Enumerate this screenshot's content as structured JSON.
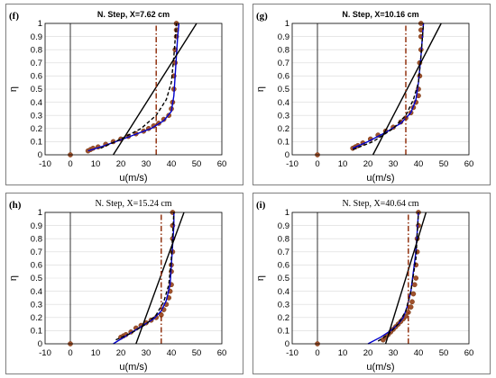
{
  "chart_data": [
    {
      "type": "line",
      "panel_tag": "(f)",
      "title": "N. Step, X=7.62 cm",
      "title_style": "bold",
      "xlabel": "u(m/s)",
      "ylabel": "η",
      "xlim": [
        -10,
        60
      ],
      "ylim": [
        0,
        1
      ],
      "xticks": [
        "-10",
        "0",
        "10",
        "20",
        "30",
        "40",
        "50",
        "60"
      ],
      "yticks": [
        "0",
        "0.1",
        "0.2",
        "0.3",
        "0.4",
        "0.5",
        "0.6",
        "0.7",
        "0.8",
        "0.9",
        "1"
      ],
      "grid": "horizontal",
      "series": [
        {
          "kind": "points",
          "color": "#a0522d",
          "x": [
            0,
            7,
            8,
            9,
            11,
            14,
            17,
            20,
            23,
            26,
            29,
            31,
            33,
            35,
            37,
            39,
            40,
            40.5,
            41,
            41,
            41.5,
            41.5,
            42,
            42,
            42
          ],
          "y": [
            0,
            0.03,
            0.04,
            0.05,
            0.06,
            0.08,
            0.1,
            0.12,
            0.14,
            0.16,
            0.18,
            0.2,
            0.22,
            0.24,
            0.27,
            0.3,
            0.35,
            0.4,
            0.5,
            0.6,
            0.7,
            0.8,
            0.9,
            0.95,
            1.0
          ]
        },
        {
          "kind": "line",
          "style": "solid",
          "color": "#0000cc",
          "x": [
            7,
            12,
            18,
            25,
            32,
            37,
            40,
            41,
            41.5,
            42,
            42.5,
            43
          ],
          "y": [
            0.03,
            0.06,
            0.1,
            0.15,
            0.2,
            0.26,
            0.33,
            0.45,
            0.6,
            0.75,
            0.9,
            1.0
          ]
        },
        {
          "kind": "line",
          "style": "dashed",
          "color": "#000000",
          "x": [
            12,
            20,
            28,
            34,
            38,
            40,
            41,
            42
          ],
          "y": [
            0.05,
            0.12,
            0.2,
            0.3,
            0.42,
            0.55,
            0.75,
            1.0
          ]
        },
        {
          "kind": "line",
          "style": "solid",
          "color": "#000000",
          "x": [
            17,
            50
          ],
          "y": [
            0,
            1
          ]
        },
        {
          "kind": "line",
          "style": "dashdot",
          "color": "#8b2500",
          "x": [
            34,
            34
          ],
          "y": [
            0,
            1
          ]
        }
      ]
    },
    {
      "type": "line",
      "panel_tag": "(g)",
      "title": "N. Step, X=10.16 cm",
      "title_style": "bold",
      "xlabel": "u(m/s)",
      "ylabel": "η",
      "xlim": [
        -10,
        60
      ],
      "ylim": [
        0,
        1
      ],
      "xticks": [
        "-10",
        "0",
        "10",
        "20",
        "30",
        "40",
        "50",
        "60"
      ],
      "yticks": [
        "0",
        "0.1",
        "0.2",
        "0.3",
        "0.4",
        "0.5",
        "0.6",
        "0.7",
        "0.8",
        "0.9",
        "1"
      ],
      "grid": "horizontal",
      "series": [
        {
          "kind": "points",
          "color": "#a0522d",
          "x": [
            0,
            14,
            15,
            16,
            18,
            21,
            24,
            27,
            30,
            33,
            35,
            37,
            38,
            39,
            40,
            40,
            40.5,
            40.5,
            41,
            41,
            41,
            41
          ],
          "y": [
            0,
            0.05,
            0.06,
            0.07,
            0.09,
            0.12,
            0.15,
            0.18,
            0.21,
            0.25,
            0.28,
            0.32,
            0.36,
            0.4,
            0.45,
            0.5,
            0.6,
            0.7,
            0.8,
            0.9,
            0.95,
            1.0
          ]
        },
        {
          "kind": "line",
          "style": "solid",
          "color": "#0000cc",
          "x": [
            14,
            20,
            27,
            33,
            37,
            39,
            40,
            40.5,
            41,
            41.5,
            42
          ],
          "y": [
            0.05,
            0.1,
            0.17,
            0.24,
            0.32,
            0.42,
            0.55,
            0.65,
            0.75,
            0.88,
            1.0
          ]
        },
        {
          "kind": "line",
          "style": "dashed",
          "color": "#000000",
          "x": [
            14,
            22,
            30,
            35,
            38,
            40,
            41,
            42
          ],
          "y": [
            0.04,
            0.1,
            0.2,
            0.3,
            0.42,
            0.55,
            0.75,
            1.0
          ]
        },
        {
          "kind": "line",
          "style": "solid",
          "color": "#000000",
          "x": [
            22,
            49
          ],
          "y": [
            0,
            1
          ]
        },
        {
          "kind": "line",
          "style": "dashdot",
          "color": "#8b2500",
          "x": [
            35,
            35
          ],
          "y": [
            0,
            1
          ]
        }
      ]
    },
    {
      "type": "line",
      "panel_tag": "(h)",
      "title": "N. Step, X=15.24 cm",
      "title_style": "normal",
      "xlabel": "u(m/s)",
      "ylabel": "η",
      "xlim": [
        -10,
        60
      ],
      "ylim": [
        0,
        1
      ],
      "xticks": [
        "-10",
        "0",
        "10",
        "20",
        "30",
        "40",
        "50",
        "60"
      ],
      "yticks": [
        "0",
        "0.1",
        "0.2",
        "0.3",
        "0.4",
        "0.5",
        "0.6",
        "0.7",
        "0.8",
        "0.9",
        "1"
      ],
      "grid": "horizontal",
      "series": [
        {
          "kind": "points",
          "color": "#a0522d",
          "x": [
            0,
            20,
            21,
            22,
            24,
            26,
            28,
            30,
            32,
            34,
            36,
            37,
            38,
            39,
            39.5,
            40,
            40,
            40,
            40.5,
            40.5,
            40.5,
            40.5
          ],
          "y": [
            0,
            0.05,
            0.06,
            0.07,
            0.09,
            0.12,
            0.14,
            0.16,
            0.18,
            0.2,
            0.22,
            0.26,
            0.3,
            0.35,
            0.4,
            0.45,
            0.55,
            0.6,
            0.7,
            0.8,
            0.9,
            1.0
          ]
        },
        {
          "kind": "line",
          "style": "solid",
          "color": "#0000cc",
          "x": [
            17,
            22,
            28,
            33,
            36,
            38,
            39.5,
            40,
            40.5,
            41,
            41
          ],
          "y": [
            0.0,
            0.06,
            0.13,
            0.19,
            0.25,
            0.33,
            0.45,
            0.6,
            0.75,
            0.9,
            1.0
          ]
        },
        {
          "kind": "line",
          "style": "dashed",
          "color": "#000000",
          "x": [
            18,
            24,
            30,
            34,
            37,
            39,
            40,
            41
          ],
          "y": [
            0.03,
            0.08,
            0.15,
            0.22,
            0.32,
            0.45,
            0.65,
            1.0
          ]
        },
        {
          "kind": "line",
          "style": "solid",
          "color": "#000000",
          "x": [
            26,
            45
          ],
          "y": [
            0,
            1
          ]
        },
        {
          "kind": "line",
          "style": "dashdot",
          "color": "#8b2500",
          "x": [
            36,
            36
          ],
          "y": [
            0,
            1
          ]
        }
      ]
    },
    {
      "type": "line",
      "panel_tag": "(i)",
      "title": "N. Step, X=40.64 cm",
      "title_style": "normal",
      "xlabel": "u(m/s)",
      "ylabel": "η",
      "xlim": [
        -10,
        60
      ],
      "ylim": [
        0,
        1
      ],
      "xticks": [
        "-10",
        "0",
        "10",
        "20",
        "30",
        "40",
        "50",
        "60"
      ],
      "yticks": [
        "0",
        "0.1",
        "0.2",
        "0.3",
        "0.4",
        "0.5",
        "0.6",
        "0.7",
        "0.8",
        "0.9",
        "1"
      ],
      "grid": "horizontal",
      "series": [
        {
          "kind": "points",
          "color": "#a0522d",
          "x": [
            0,
            26,
            27,
            28,
            29,
            30,
            31,
            32,
            33,
            34,
            35,
            36,
            37,
            37.5,
            38,
            38.5,
            39,
            39,
            39.5,
            39.5,
            40,
            40
          ],
          "y": [
            0,
            0.03,
            0.05,
            0.07,
            0.09,
            0.11,
            0.13,
            0.15,
            0.17,
            0.19,
            0.21,
            0.24,
            0.28,
            0.32,
            0.38,
            0.45,
            0.5,
            0.6,
            0.7,
            0.8,
            0.9,
            1.0
          ]
        },
        {
          "kind": "line",
          "style": "solid",
          "color": "#0000cc",
          "x": [
            20,
            25,
            29,
            32,
            34,
            35.5,
            37,
            38,
            39,
            39.5,
            40
          ],
          "y": [
            0.0,
            0.05,
            0.1,
            0.15,
            0.2,
            0.28,
            0.4,
            0.55,
            0.7,
            0.85,
            1.0
          ]
        },
        {
          "kind": "line",
          "style": "dashed",
          "color": "#000000",
          "x": [
            24,
            28,
            32,
            35,
            37,
            39,
            40
          ],
          "y": [
            0.02,
            0.07,
            0.15,
            0.25,
            0.4,
            0.65,
            1.0
          ]
        },
        {
          "kind": "line",
          "style": "solid",
          "color": "#000000",
          "x": [
            27,
            43
          ],
          "y": [
            0,
            1
          ]
        },
        {
          "kind": "line",
          "style": "dashdot",
          "color": "#8b2500",
          "x": [
            36,
            36
          ],
          "y": [
            0,
            1
          ]
        }
      ]
    }
  ]
}
